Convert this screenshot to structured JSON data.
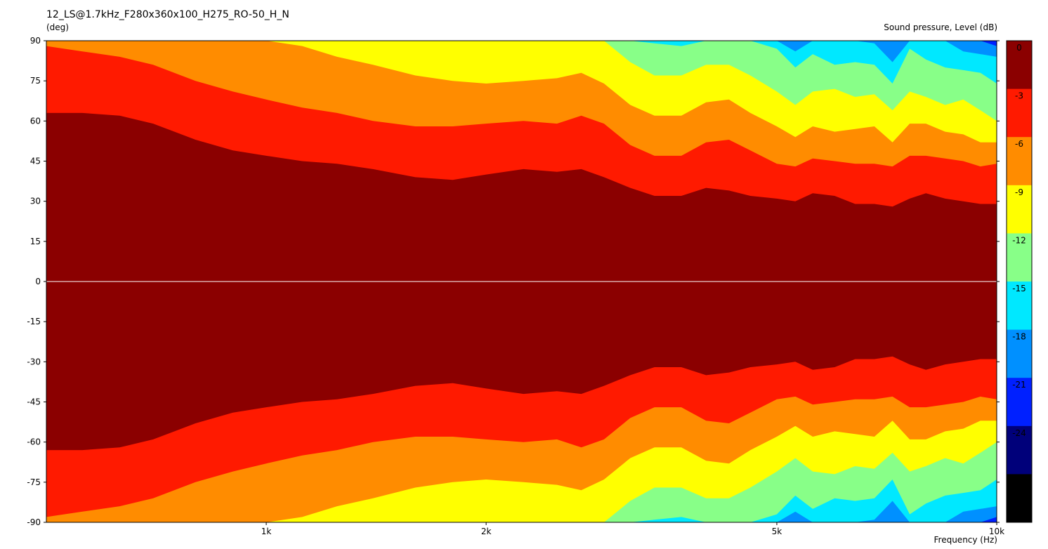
{
  "chart_data": {
    "type": "heatmap",
    "title": "12_LS@1.7kHz_F280x360x100_H275_RO-50_H_N",
    "y_unit": "(deg)",
    "colorbar_label": "Sound pressure, Level  (dB)",
    "xlabel": "Frequency  (Hz)",
    "x_scale": "log",
    "xlim": [
      500,
      10000
    ],
    "ylim": [
      -90,
      90
    ],
    "x_ticks": [
      {
        "value": 1000,
        "label": "1k"
      },
      {
        "value": 2000,
        "label": "2k"
      },
      {
        "value": 5000,
        "label": "5k"
      },
      {
        "value": 10000,
        "label": "10k"
      }
    ],
    "y_ticks": [
      90,
      75,
      60,
      45,
      30,
      15,
      0,
      -15,
      -30,
      -45,
      -60,
      -75,
      -90
    ],
    "colorbar": {
      "ticks": [
        "0",
        "-3",
        "-6",
        "-9",
        "-12",
        "-15",
        "-18",
        "-21",
        "-24",
        "-27"
      ],
      "bands": [
        {
          "from": 0,
          "to": -3,
          "color": "#8b0000"
        },
        {
          "from": -3,
          "to": -6,
          "color": "#ff1a00"
        },
        {
          "from": -6,
          "to": -9,
          "color": "#ff8c00"
        },
        {
          "from": -9,
          "to": -12,
          "color": "#ffff00"
        },
        {
          "from": -12,
          "to": -15,
          "color": "#88ff88"
        },
        {
          "from": -15,
          "to": -18,
          "color": "#00e8ff"
        },
        {
          "from": -18,
          "to": -21,
          "color": "#0090ff"
        },
        {
          "from": -21,
          "to": -24,
          "color": "#0020ff"
        },
        {
          "from": -24,
          "to": -27,
          "color": "#00007a"
        },
        {
          "from": -27,
          "to": -30,
          "color": "#000000"
        }
      ]
    },
    "symmetric_about_zero": true,
    "contours": {
      "frequencies": [
        500,
        560,
        630,
        700,
        800,
        900,
        1000,
        1120,
        1250,
        1400,
        1600,
        1800,
        2000,
        2250,
        2500,
        2700,
        2900,
        3150,
        3400,
        3700,
        4000,
        4300,
        4600,
        5000,
        5300,
        5600,
        6000,
        6400,
        6800,
        7200,
        7600,
        8000,
        8500,
        9000,
        9500,
        10000
      ],
      "-3": [
        63,
        63,
        62,
        59,
        53,
        49,
        47,
        45,
        44,
        42,
        39,
        38,
        40,
        42,
        41,
        42,
        39,
        35,
        32,
        32,
        35,
        34,
        32,
        31,
        30,
        33,
        32,
        29,
        29,
        28,
        31,
        33,
        31,
        30,
        29,
        29
      ],
      "-6": [
        88,
        86,
        84,
        81,
        75,
        71,
        68,
        65,
        63,
        60,
        58,
        58,
        59,
        60,
        59,
        62,
        59,
        51,
        47,
        47,
        52,
        53,
        49,
        44,
        43,
        46,
        45,
        44,
        44,
        43,
        47,
        47,
        46,
        45,
        43,
        44
      ],
      "-9": [
        90,
        90,
        90,
        90,
        90,
        90,
        90,
        88,
        84,
        81,
        77,
        75,
        74,
        75,
        76,
        78,
        74,
        66,
        62,
        62,
        67,
        68,
        63,
        58,
        54,
        58,
        56,
        57,
        58,
        52,
        59,
        59,
        56,
        55,
        52,
        52
      ],
      "-12": [
        90,
        90,
        90,
        90,
        90,
        90,
        90,
        90,
        90,
        90,
        90,
        90,
        90,
        90,
        90,
        90,
        90,
        82,
        77,
        77,
        81,
        81,
        77,
        71,
        66,
        71,
        72,
        69,
        70,
        64,
        71,
        69,
        66,
        68,
        64,
        60
      ],
      "-15": [
        90,
        90,
        90,
        90,
        90,
        90,
        90,
        90,
        90,
        90,
        90,
        90,
        90,
        90,
        90,
        90,
        90,
        90,
        89,
        88,
        90,
        90,
        90,
        87,
        80,
        85,
        81,
        82,
        81,
        74,
        87,
        83,
        80,
        79,
        78,
        74
      ],
      "-18": [
        90,
        90,
        90,
        90,
        90,
        90,
        90,
        90,
        90,
        90,
        90,
        90,
        90,
        90,
        90,
        90,
        90,
        90,
        90,
        90,
        90,
        90,
        90,
        90,
        86,
        90,
        90,
        90,
        89,
        82,
        90,
        90,
        90,
        86,
        85,
        84
      ],
      "-21": [
        90,
        90,
        90,
        90,
        90,
        90,
        90,
        90,
        90,
        90,
        90,
        90,
        90,
        90,
        90,
        90,
        90,
        90,
        90,
        90,
        90,
        90,
        90,
        90,
        90,
        90,
        90,
        90,
        90,
        90,
        90,
        90,
        90,
        90,
        90,
        88
      ]
    }
  }
}
